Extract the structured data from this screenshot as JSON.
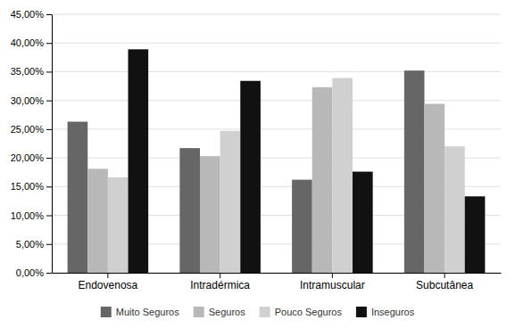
{
  "chart_data": {
    "type": "bar",
    "categories": [
      "Endovenosa",
      "Intradérmica",
      "Intramuscular",
      "Subcutânea"
    ],
    "series": [
      {
        "name": "Muito Seguros",
        "color": "#666666",
        "values": [
          0.263,
          0.217,
          0.162,
          0.352
        ]
      },
      {
        "name": "Seguros",
        "color": "#b8b8b8",
        "values": [
          0.181,
          0.203,
          0.323,
          0.294
        ]
      },
      {
        "name": "Pouco Seguros",
        "color": "#d0d0d0",
        "values": [
          0.166,
          0.247,
          0.339,
          0.22
        ]
      },
      {
        "name": "Inseguros",
        "color": "#111111",
        "values": [
          0.389,
          0.334,
          0.176,
          0.133
        ]
      }
    ],
    "ylim": [
      0,
      0.45
    ],
    "yticks": [
      {
        "value": 0.0,
        "label": "0,00%"
      },
      {
        "value": 0.05,
        "label": "5,00%"
      },
      {
        "value": 0.1,
        "label": "10,00%"
      },
      {
        "value": 0.15,
        "label": "15,00%"
      },
      {
        "value": 0.2,
        "label": "20,00%"
      },
      {
        "value": 0.25,
        "label": "25,00%"
      },
      {
        "value": 0.3,
        "label": "30,00%"
      },
      {
        "value": 0.35,
        "label": "35,00%"
      },
      {
        "value": 0.4,
        "label": "40,00%"
      },
      {
        "value": 0.45,
        "label": "45,00%"
      }
    ],
    "grid": true,
    "legend": "bottom"
  }
}
